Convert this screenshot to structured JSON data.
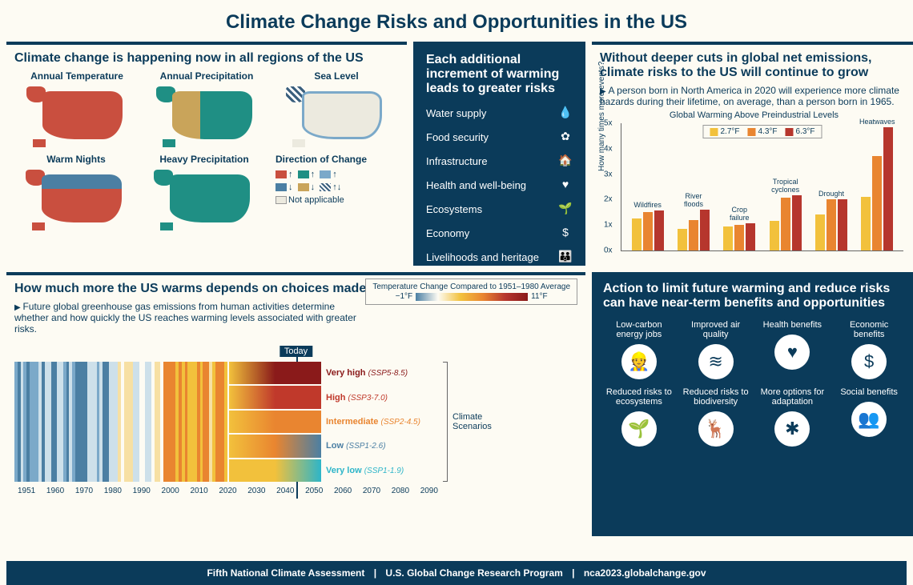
{
  "title": "Climate Change Risks and Opportunities in the US",
  "colors": {
    "navy": "#0b3b5a",
    "cream": "#fdfbf3",
    "red_up": "#c94f3f",
    "teal_up": "#1f8f84",
    "blue_up": "#7ba9c9",
    "blue_down": "#4b7fa3",
    "tan_down": "#c9a45a",
    "hatch": "#3a5f7d",
    "bar_yellow": "#f2c13c",
    "bar_orange": "#e98530",
    "bar_red": "#b6362d",
    "scen_veryhigh": "#8a1a1a",
    "scen_high": "#c0392b",
    "scen_inter": "#e98530",
    "scen_low": "#4b7fa3",
    "scen_verylow": "#2db5c9"
  },
  "panel1": {
    "title": "Climate change is happening now in all regions of the US",
    "maps": [
      {
        "label": "Annual Temperature",
        "main": "#c94f3f",
        "ak": "#c94f3f",
        "hi": "#c94f3f"
      },
      {
        "label": "Annual Precipitation",
        "main": "#1f8f84",
        "ak": "#1f8f84",
        "hi": "#1f8f84",
        "west": "#c9a45a"
      },
      {
        "label": "Sea Level",
        "main": "#eceadf",
        "ak": "repeating-linear-gradient(45deg,#3a5f7d,#3a5f7d 3px,#fff 3px,#fff 6px)",
        "coast": "#7ba9c9"
      },
      {
        "label": "Warm Nights",
        "main": "#c94f3f",
        "ak": "#c94f3f",
        "north": "#4b7fa3"
      },
      {
        "label": "Heavy Precipitation",
        "main": "#1f8f84",
        "ak": "#1f8f84",
        "hi": "#1f8f84"
      }
    ],
    "legend_title": "Direction of Change",
    "legend": [
      {
        "color": "#c94f3f",
        "arrow": "↑"
      },
      {
        "color": "#1f8f84",
        "arrow": "↑"
      },
      {
        "color": "#7ba9c9",
        "arrow": "↑"
      },
      {
        "color": "#4b7fa3",
        "arrow": "↓"
      },
      {
        "color": "#c9a45a",
        "arrow": "↓"
      },
      {
        "color": "hatch",
        "arrow": "↑↓"
      },
      {
        "color": "#eceadf",
        "label": "Not applicable"
      }
    ]
  },
  "panel2": {
    "title": "Each additional increment of warming leads to greater risks",
    "risks": [
      {
        "label": "Water supply",
        "icon": "💧"
      },
      {
        "label": "Food security",
        "icon": "✿"
      },
      {
        "label": "Infrastructure",
        "icon": "🏠"
      },
      {
        "label": "Health and well-being",
        "icon": "♥"
      },
      {
        "label": "Ecosystems",
        "icon": "🌱"
      },
      {
        "label": "Economy",
        "icon": "$"
      },
      {
        "label": "Livelihoods and heritage",
        "icon": "👪"
      }
    ]
  },
  "panel3": {
    "title": "Without deeper cuts in global net emissions, climate risks to the US will continue to grow",
    "lead": "A person born in North America in 2020 will experience more climate hazards during their lifetime, on average, than a person born in 1965.",
    "chart_title": "Global Warming Above Preindustrial Levels",
    "ylabel": "How many times more events?",
    "ylim": [
      0,
      5
    ],
    "ytick_step": 1,
    "legend": [
      {
        "label": "2.7°F",
        "color": "#f2c13c"
      },
      {
        "label": "4.3°F",
        "color": "#e98530"
      },
      {
        "label": "6.3°F",
        "color": "#b6362d"
      }
    ],
    "groups": [
      {
        "label": "Wildfires",
        "values": [
          1.25,
          1.5,
          1.55
        ]
      },
      {
        "label": "River floods",
        "values": [
          0.85,
          1.2,
          1.6
        ]
      },
      {
        "label": "Crop failure",
        "values": [
          0.95,
          1.0,
          1.05
        ]
      },
      {
        "label": "Tropical cyclones",
        "values": [
          1.15,
          2.05,
          2.15
        ]
      },
      {
        "label": "Drought",
        "values": [
          1.4,
          2.0,
          2.0
        ]
      },
      {
        "label": "Heatwaves",
        "values": [
          2.1,
          3.7,
          4.8
        ]
      }
    ]
  },
  "panel4": {
    "title": "How much more the US warms depends on choices made today",
    "lead": "Future global greenhouse gas emissions from human activities determine whether and how quickly the US reaches warming levels associated with greater risks.",
    "today": "Today",
    "xticks": [
      "1951",
      "1960",
      "1970",
      "1980",
      "1990",
      "2000",
      "2010",
      "2020",
      "2030",
      "2040",
      "2050",
      "2060",
      "2070",
      "2080",
      "2090"
    ],
    "temp_legend_title": "Temperature Change Compared to 1951–1980 Average",
    "temp_min": "−1°F",
    "temp_max": "11°F",
    "bracket_label": "Climate Scenarios",
    "scenarios": [
      {
        "label": "Very high",
        "code": "(SSP5-8.5)",
        "color": "#8a1a1a",
        "end": "#8a1a1a"
      },
      {
        "label": "High",
        "code": "(SSP3-7.0)",
        "color": "#c0392b",
        "end": "#c0392b"
      },
      {
        "label": "Intermediate",
        "code": "(SSP2-4.5)",
        "color": "#e98530",
        "end": "#e98530"
      },
      {
        "label": "Low",
        "code": "(SSP1-2.6)",
        "color": "#4b7fa3",
        "end": "#e98530"
      },
      {
        "label": "Very low",
        "code": "(SSP1-1.9)",
        "color": "#2db5c9",
        "end": "#f2c13c"
      }
    ]
  },
  "panel5": {
    "title": "Action to limit future warming and reduce risks can have near-term benefits and opportunities",
    "benefits": [
      {
        "label": "Low-carbon energy jobs",
        "icon": "👷"
      },
      {
        "label": "Improved air quality",
        "icon": "≋"
      },
      {
        "label": "Health benefits",
        "icon": "♥"
      },
      {
        "label": "Economic benefits",
        "icon": "$"
      },
      {
        "label": "Reduced risks to ecosystems",
        "icon": "🌱"
      },
      {
        "label": "Reduced risks to biodiversity",
        "icon": "🦌"
      },
      {
        "label": "More options for adaptation",
        "icon": "✱"
      },
      {
        "label": "Social benefits",
        "icon": "👥"
      }
    ]
  },
  "footer": {
    "a": "Fifth National Climate Assessment",
    "b": "U.S. Global Change Research Program",
    "c": "nca2023.globalchange.gov"
  }
}
